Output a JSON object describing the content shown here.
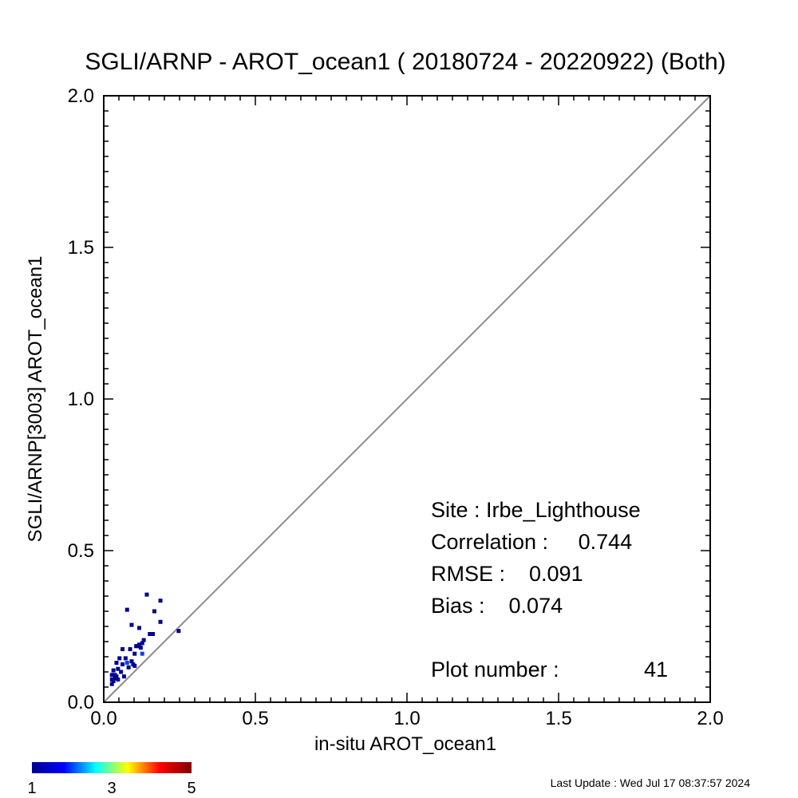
{
  "chart_data": {
    "type": "scatter",
    "title": "SGLI/ARNP - AROT_ocean1 ( 20180724 - 20220922) (Both)",
    "xlabel": "in-situ AROT_ocean1",
    "ylabel": "SGLI/ARNP[3003]    AROT_ocean1",
    "xlim": [
      0.0,
      2.0
    ],
    "ylim": [
      0.0,
      2.0
    ],
    "x_ticks": [
      "0.0",
      "0.5",
      "1.0",
      "1.5",
      "2.0"
    ],
    "y_ticks": [
      "0.0",
      "0.5",
      "1.0",
      "1.5",
      "2.0"
    ],
    "reference_line": "1:1",
    "grid": false,
    "stats": {
      "site": "Site : Irbe_Lighthouse",
      "correlation": "Correlation :     0.744",
      "rmse": "RMSE :    0.091",
      "bias": "Bias :    0.074",
      "plot_number": "Plot number :",
      "plot_number_value": "41"
    },
    "points": [
      {
        "x": 0.027,
        "y": 0.06,
        "count": 1
      },
      {
        "x": 0.027,
        "y": 0.075,
        "count": 1
      },
      {
        "x": 0.032,
        "y": 0.07,
        "count": 1
      },
      {
        "x": 0.037,
        "y": 0.08,
        "count": 1
      },
      {
        "x": 0.027,
        "y": 0.09,
        "count": 1
      },
      {
        "x": 0.037,
        "y": 0.09,
        "count": 1
      },
      {
        "x": 0.042,
        "y": 0.085,
        "count": 1
      },
      {
        "x": 0.032,
        "y": 0.105,
        "count": 1
      },
      {
        "x": 0.047,
        "y": 0.11,
        "count": 1
      },
      {
        "x": 0.042,
        "y": 0.13,
        "count": 1
      },
      {
        "x": 0.052,
        "y": 0.145,
        "count": 1
      },
      {
        "x": 0.062,
        "y": 0.125,
        "count": 1
      },
      {
        "x": 0.067,
        "y": 0.085,
        "count": 1
      },
      {
        "x": 0.062,
        "y": 0.175,
        "count": 1
      },
      {
        "x": 0.072,
        "y": 0.145,
        "count": 1
      },
      {
        "x": 0.077,
        "y": 0.13,
        "count": 2
      },
      {
        "x": 0.082,
        "y": 0.115,
        "count": 1
      },
      {
        "x": 0.087,
        "y": 0.175,
        "count": 1
      },
      {
        "x": 0.092,
        "y": 0.135,
        "count": 1
      },
      {
        "x": 0.097,
        "y": 0.125,
        "count": 1
      },
      {
        "x": 0.102,
        "y": 0.12,
        "count": 1
      },
      {
        "x": 0.107,
        "y": 0.185,
        "count": 1
      },
      {
        "x": 0.112,
        "y": 0.185,
        "count": 1
      },
      {
        "x": 0.117,
        "y": 0.19,
        "count": 1
      },
      {
        "x": 0.122,
        "y": 0.18,
        "count": 1
      },
      {
        "x": 0.127,
        "y": 0.16,
        "count": 2
      },
      {
        "x": 0.127,
        "y": 0.195,
        "count": 1
      },
      {
        "x": 0.132,
        "y": 0.205,
        "count": 1
      },
      {
        "x": 0.077,
        "y": 0.305,
        "count": 1
      },
      {
        "x": 0.092,
        "y": 0.255,
        "count": 1
      },
      {
        "x": 0.117,
        "y": 0.245,
        "count": 1
      },
      {
        "x": 0.142,
        "y": 0.355,
        "count": 1
      },
      {
        "x": 0.152,
        "y": 0.225,
        "count": 1
      },
      {
        "x": 0.162,
        "y": 0.225,
        "count": 1
      },
      {
        "x": 0.167,
        "y": 0.3,
        "count": 1
      },
      {
        "x": 0.187,
        "y": 0.335,
        "count": 1
      },
      {
        "x": 0.187,
        "y": 0.265,
        "count": 1
      },
      {
        "x": 0.247,
        "y": 0.235,
        "count": 1
      },
      {
        "x": 0.102,
        "y": 0.16,
        "count": 1
      },
      {
        "x": 0.057,
        "y": 0.1,
        "count": 1
      },
      {
        "x": 0.047,
        "y": 0.075,
        "count": 1
      }
    ],
    "colorbar": {
      "min_label": "1",
      "mid_label": "3",
      "max_label": "5",
      "colors": [
        "#00008f",
        "#0000ff",
        "#00ffff",
        "#ffff00",
        "#ff0000",
        "#800000"
      ]
    },
    "footer": "Last Update : Wed Jul 17 08:37:57 2024"
  }
}
